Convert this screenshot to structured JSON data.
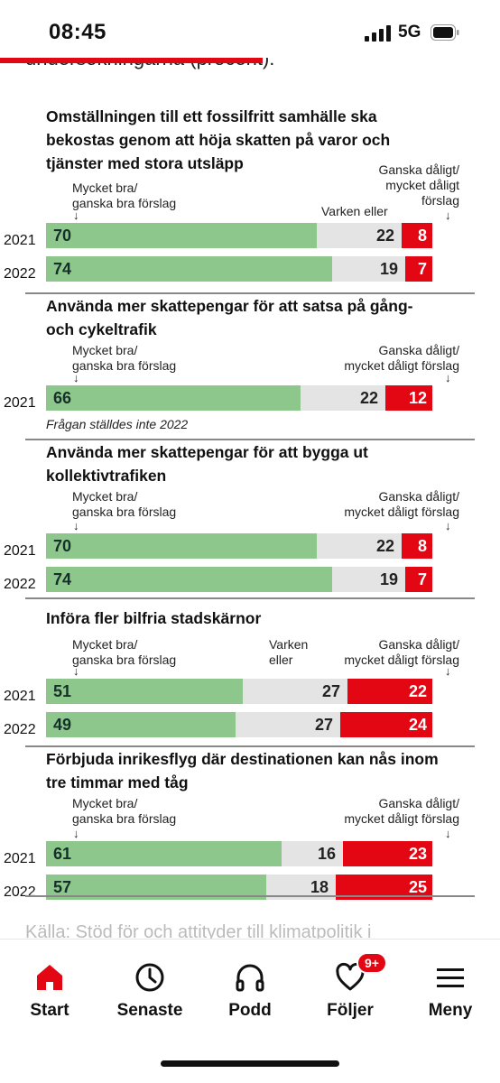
{
  "status": {
    "time": "08:45",
    "network": "5G"
  },
  "header": {
    "peek_text": "undersökningarna (procent):"
  },
  "chart_data": [
    {
      "type": "bar",
      "title": "Omställningen till ett fossilfritt samhälle ska bekostas genom att höja skatten på varor och tjänster med stora utsläpp",
      "legend": {
        "positive": "Mycket bra/ ganska bra förslag",
        "neutral": "Varken eller",
        "negative": "Ganska dåligt/ mycket dåligt förslag"
      },
      "categories": [
        "2021",
        "2022"
      ],
      "series": [
        {
          "name": "Mycket bra/ ganska bra förslag",
          "values": [
            70,
            74
          ]
        },
        {
          "name": "Varken eller",
          "values": [
            22,
            19
          ]
        },
        {
          "name": "Ganska dåligt/ mycket dåligt förslag",
          "values": [
            8,
            7
          ]
        }
      ],
      "colors": {
        "positive": "#8ec78b",
        "neutral": "#e4e4e4",
        "negative": "#e30613"
      }
    },
    {
      "type": "bar",
      "title": "Använda mer skattepengar för att satsa på gång- och cykeltrafik",
      "legend": {
        "positive": "Mycket bra/ ganska bra förslag",
        "neutral": "",
        "negative": "Ganska dåligt/ mycket dåligt förslag"
      },
      "categories": [
        "2021"
      ],
      "series": [
        {
          "name": "Mycket bra/ ganska bra förslag",
          "values": [
            66
          ]
        },
        {
          "name": "",
          "values": [
            22
          ]
        },
        {
          "name": "Ganska dåligt/ mycket dåligt förslag",
          "values": [
            12
          ]
        }
      ],
      "note": "Frågan ställdes inte 2022"
    },
    {
      "type": "bar",
      "title": "Använda mer skattepengar för att bygga ut kollektivtrafiken",
      "legend": {
        "positive": "Mycket bra/ ganska bra förslag",
        "neutral": "",
        "negative": "Ganska dåligt/ mycket dåligt förslag"
      },
      "categories": [
        "2021",
        "2022"
      ],
      "series": [
        {
          "name": "Mycket bra/ ganska bra förslag",
          "values": [
            70,
            74
          ]
        },
        {
          "name": "",
          "values": [
            22,
            19
          ]
        },
        {
          "name": "Ganska dåligt/ mycket dåligt förslag",
          "values": [
            8,
            7
          ]
        }
      ]
    },
    {
      "type": "bar",
      "title": "Införa fler bilfria stadskärnor",
      "legend": {
        "positive": "Mycket bra/ ganska bra förslag",
        "neutral": "Varken eller",
        "negative": "Ganska dåligt/ mycket dåligt förslag"
      },
      "categories": [
        "2021",
        "2022"
      ],
      "series": [
        {
          "name": "Mycket bra/ ganska bra förslag",
          "values": [
            51,
            49
          ]
        },
        {
          "name": "Varken eller",
          "values": [
            27,
            27
          ]
        },
        {
          "name": "Ganska dåligt/ mycket dåligt förslag",
          "values": [
            22,
            24
          ]
        }
      ]
    },
    {
      "type": "bar",
      "title": "Förbjuda inrikesflyg där destinationen kan nås inom tre timmar med tåg",
      "legend": {
        "positive": "Mycket bra/ ganska bra förslag",
        "neutral": "",
        "negative": "Ganska dåligt/ mycket dåligt förslag"
      },
      "categories": [
        "2021",
        "2022"
      ],
      "series": [
        {
          "name": "Mycket bra/ ganska bra förslag",
          "values": [
            61,
            57
          ]
        },
        {
          "name": "",
          "values": [
            16,
            18
          ]
        },
        {
          "name": "Ganska dåligt/ mycket dåligt förslag",
          "values": [
            23,
            25
          ]
        }
      ]
    }
  ],
  "source": "Källa: Stöd för och attityder till klimatpolitik i",
  "nav": {
    "items": [
      {
        "label": "Start",
        "icon": "home-icon",
        "active": true
      },
      {
        "label": "Senaste",
        "icon": "clock-icon"
      },
      {
        "label": "Podd",
        "icon": "headphones-icon"
      },
      {
        "label": "Följer",
        "icon": "heart-icon",
        "badge": "9+"
      },
      {
        "label": "Meny",
        "icon": "menu-icon"
      }
    ]
  }
}
